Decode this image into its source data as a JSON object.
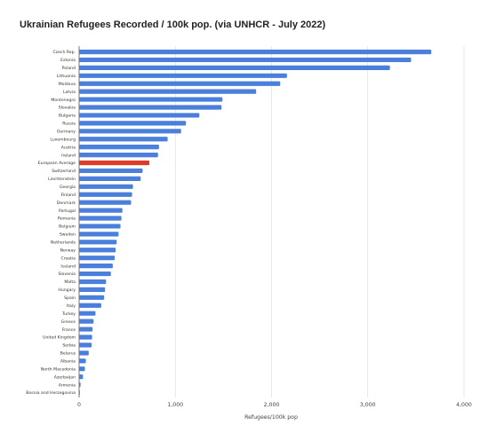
{
  "chart_data": {
    "type": "bar",
    "orientation": "horizontal",
    "title": "Ukrainian Refugees Recorded / 100k pop. (via UNHCR - July 2022)",
    "xlabel": "Refugees/100k pop",
    "ylabel": "",
    "xlim": [
      0,
      4000
    ],
    "xticks": [
      0,
      1000,
      2000,
      3000,
      4000
    ],
    "xtick_labels": [
      "0",
      "1,000",
      "2,000",
      "3,000",
      "4,000"
    ],
    "grid": "vertical",
    "bar_color": "#4a7fdc",
    "highlight_color": "#de3b2b",
    "highlight_category": "European Average",
    "categories": [
      "Czech Rep.",
      "Estonia",
      "Poland",
      "Lithuania",
      "Moldova",
      "Latvia",
      "Montenegro",
      "Slovakia",
      "Bulgaria",
      "Russia",
      "Germany",
      "Luxembourg",
      "Austria",
      "Ireland",
      "European Average",
      "Switzerland",
      "Liechtenstein",
      "Georgia",
      "Finland",
      "Denmark",
      "Portugal",
      "Romania",
      "Belgium",
      "Sweden",
      "Netherlands",
      "Norway",
      "Croatia",
      "Iceland",
      "Slovenia",
      "Malta",
      "Hungary",
      "Spain",
      "Italy",
      "Turkey",
      "Greece",
      "France",
      "United Kingdom",
      "Serbia",
      "Belarus",
      "Albania",
      "North Macedonia",
      "Azerbaijan",
      "Armenia",
      "Bosnia and Herzegovina"
    ],
    "values": [
      3660,
      3450,
      3230,
      2160,
      2090,
      1840,
      1490,
      1480,
      1250,
      1110,
      1060,
      920,
      830,
      820,
      730,
      660,
      640,
      560,
      550,
      540,
      450,
      440,
      430,
      410,
      390,
      380,
      370,
      350,
      330,
      280,
      270,
      260,
      230,
      170,
      150,
      140,
      135,
      130,
      100,
      70,
      60,
      40,
      15,
      8
    ]
  }
}
